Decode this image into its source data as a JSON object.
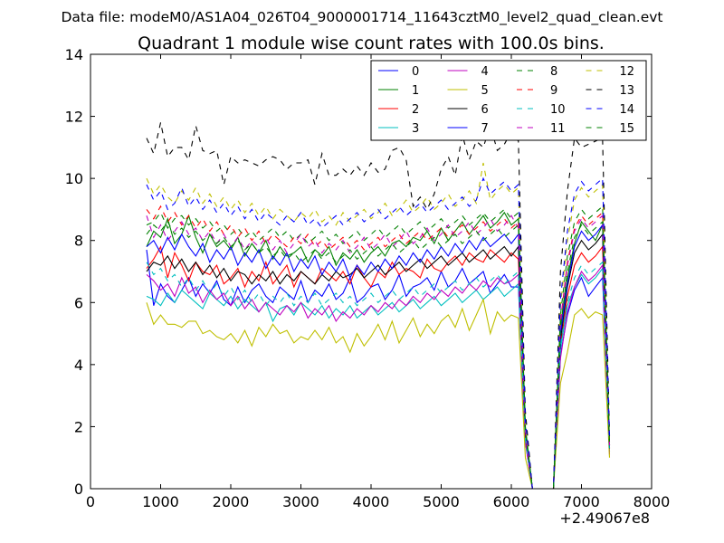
{
  "chart_data": {
    "type": "line",
    "suptitle": "Data file: modeM0/AS1A04_026T04_9000001714_11643cztM0_level2_quad_clean.evt",
    "title": "Quadrant 1 module wise count rates with 100.0s bins.",
    "xlabel": "",
    "ylabel": "",
    "x_offset_label": "+2.49067e8",
    "xlim": [
      0,
      8000
    ],
    "ylim": [
      0,
      14
    ],
    "x_ticks": [
      0,
      1000,
      2000,
      3000,
      4000,
      5000,
      6000,
      7000,
      8000
    ],
    "y_ticks": [
      0,
      2,
      4,
      6,
      8,
      10,
      12,
      14
    ],
    "legend": {
      "position": "top-right",
      "columns": 4
    },
    "x": [
      800,
      900,
      1000,
      1100,
      1200,
      1300,
      1400,
      1500,
      1600,
      1700,
      1800,
      1900,
      2000,
      2100,
      2200,
      2300,
      2400,
      2500,
      2600,
      2700,
      2800,
      2900,
      3000,
      3100,
      3200,
      3300,
      3400,
      3500,
      3600,
      3700,
      3800,
      3900,
      4000,
      4100,
      4200,
      4300,
      4400,
      4500,
      4600,
      4700,
      4800,
      4900,
      5000,
      5100,
      5200,
      5300,
      5400,
      5500,
      5600,
      5700,
      5800,
      5900,
      6000,
      6100,
      6200,
      6300,
      6400,
      6500,
      6600,
      6700,
      6800,
      6900,
      7000,
      7100,
      7200,
      7300,
      7400
    ],
    "series": [
      {
        "name": "0",
        "color": "#0000ff",
        "dash": "solid",
        "values": [
          7.7,
          5.9,
          6.6,
          6.2,
          6.0,
          6.4,
          6.8,
          6.2,
          6.6,
          6.3,
          6.7,
          6.1,
          5.9,
          6.5,
          6.0,
          6.4,
          6.6,
          6.2,
          6.0,
          6.5,
          6.3,
          6.1,
          6.7,
          6.0,
          6.4,
          6.2,
          6.6,
          6.1,
          6.3,
          6.8,
          6.0,
          6.2,
          6.5,
          6.6,
          6.1,
          6.4,
          6.9,
          6.2,
          6.5,
          6.6,
          6.8,
          6.4,
          7.0,
          6.5,
          6.7,
          7.1,
          6.6,
          6.8,
          7.0,
          6.3,
          6.6,
          6.9,
          6.5,
          6.5,
          1.5,
          0,
          0,
          0,
          0,
          4.3,
          5.6,
          6.4,
          6.8,
          6.2,
          6.5,
          6.8,
          1.2
        ]
      },
      {
        "name": "1",
        "color": "#008000",
        "dash": "solid",
        "values": [
          7.8,
          8.3,
          8.1,
          8.7,
          7.9,
          8.2,
          8.8,
          8.1,
          7.6,
          8.2,
          7.8,
          8.0,
          7.7,
          8.1,
          7.5,
          7.9,
          7.6,
          8.0,
          7.4,
          7.8,
          7.5,
          7.6,
          7.8,
          7.3,
          7.7,
          7.5,
          7.8,
          7.2,
          7.6,
          7.4,
          7.7,
          7.3,
          7.6,
          7.8,
          7.5,
          7.9,
          8.0,
          7.8,
          8.1,
          8.0,
          8.3,
          7.9,
          8.4,
          8.0,
          8.3,
          8.6,
          8.2,
          8.5,
          8.8,
          8.4,
          8.6,
          8.9,
          8.5,
          8.7,
          1.9,
          0,
          0,
          0,
          0,
          5.2,
          6.8,
          7.9,
          8.6,
          8.3,
          8.0,
          8.5,
          1.4
        ]
      },
      {
        "name": "2",
        "color": "#ff0000",
        "dash": "solid",
        "values": [
          7.1,
          7.4,
          7.8,
          6.8,
          7.6,
          7.2,
          6.7,
          7.3,
          7.0,
          6.9,
          7.2,
          6.6,
          6.8,
          7.1,
          6.5,
          7.0,
          6.7,
          7.3,
          6.6,
          6.9,
          7.2,
          6.5,
          7.0,
          6.8,
          6.6,
          7.1,
          6.9,
          6.7,
          7.0,
          6.6,
          7.2,
          6.8,
          6.5,
          7.0,
          6.8,
          7.3,
          6.9,
          7.1,
          7.0,
          6.8,
          7.4,
          7.1,
          7.0,
          7.3,
          7.5,
          7.2,
          7.6,
          7.4,
          7.3,
          7.7,
          7.5,
          7.3,
          7.6,
          7.4,
          1.7,
          0,
          0,
          0,
          0,
          4.6,
          6.2,
          7.2,
          7.6,
          7.3,
          7.5,
          7.8,
          1.3
        ]
      },
      {
        "name": "3",
        "color": "#00bfbf",
        "dash": "solid",
        "values": [
          6.2,
          6.1,
          5.9,
          6.3,
          6.0,
          6.4,
          6.2,
          6.0,
          5.8,
          6.3,
          6.1,
          5.9,
          6.2,
          5.8,
          6.1,
          5.9,
          5.7,
          6.0,
          5.4,
          5.8,
          5.9,
          5.6,
          6.0,
          5.8,
          5.6,
          5.9,
          5.5,
          5.8,
          5.6,
          5.9,
          5.5,
          5.7,
          5.9,
          5.6,
          5.8,
          6.0,
          5.7,
          5.9,
          6.1,
          5.8,
          6.0,
          6.2,
          5.9,
          6.1,
          6.3,
          6.0,
          6.2,
          6.4,
          6.1,
          6.3,
          6.5,
          6.2,
          6.4,
          6.6,
          1.6,
          0,
          0,
          0,
          0,
          4.5,
          5.9,
          6.5,
          6.9,
          6.6,
          6.8,
          7.1,
          1.2
        ]
      },
      {
        "name": "4",
        "color": "#bf00bf",
        "dash": "solid",
        "values": [
          6.9,
          6.7,
          6.4,
          6.6,
          6.2,
          6.8,
          6.3,
          6.5,
          6.0,
          6.4,
          6.1,
          6.3,
          5.9,
          6.2,
          5.8,
          6.1,
          5.7,
          6.0,
          5.8,
          5.6,
          5.9,
          5.7,
          6.0,
          5.5,
          5.8,
          5.6,
          5.9,
          5.4,
          5.7,
          5.5,
          5.8,
          5.6,
          5.9,
          5.7,
          6.0,
          5.8,
          6.1,
          5.9,
          6.2,
          6.0,
          6.3,
          6.1,
          6.4,
          6.2,
          6.5,
          6.3,
          6.6,
          6.4,
          6.7,
          6.5,
          6.8,
          6.6,
          6.7,
          6.9,
          1.5,
          0,
          0,
          0,
          0,
          4.2,
          5.7,
          6.5,
          7.0,
          6.7,
          6.9,
          7.2,
          1.1
        ]
      },
      {
        "name": "5",
        "color": "#bfbf00",
        "dash": "solid",
        "values": [
          6.0,
          5.3,
          5.6,
          5.3,
          5.3,
          5.2,
          5.4,
          5.4,
          5.0,
          5.1,
          4.9,
          4.8,
          5.0,
          4.7,
          5.1,
          4.6,
          5.2,
          4.9,
          5.3,
          5.0,
          5.1,
          4.7,
          4.9,
          4.8,
          5.1,
          4.8,
          5.2,
          4.7,
          4.9,
          4.4,
          5.0,
          4.6,
          4.9,
          5.3,
          4.8,
          5.4,
          4.7,
          5.1,
          5.5,
          4.9,
          5.3,
          5.0,
          5.4,
          5.6,
          5.2,
          5.8,
          5.1,
          5.6,
          6.1,
          5.0,
          5.7,
          5.4,
          5.6,
          5.5,
          1.0,
          0,
          0,
          0,
          0,
          3.4,
          4.4,
          5.6,
          5.8,
          5.5,
          5.7,
          5.6,
          1.0
        ]
      },
      {
        "name": "6",
        "color": "#000000",
        "dash": "solid",
        "values": [
          7.0,
          7.3,
          7.2,
          7.5,
          7.1,
          7.4,
          7.0,
          7.3,
          6.9,
          7.2,
          6.8,
          7.1,
          6.7,
          7.0,
          6.9,
          6.6,
          6.9,
          6.7,
          7.0,
          6.6,
          6.9,
          6.7,
          7.0,
          6.8,
          6.6,
          6.9,
          6.7,
          7.0,
          6.8,
          6.9,
          7.1,
          6.8,
          7.0,
          7.2,
          6.9,
          7.1,
          7.3,
          7.0,
          7.2,
          7.4,
          7.1,
          7.3,
          7.5,
          7.2,
          7.4,
          7.6,
          7.3,
          7.5,
          7.7,
          7.4,
          7.6,
          7.8,
          7.5,
          7.8,
          1.8,
          0,
          0,
          0,
          0,
          4.8,
          6.5,
          7.6,
          8.0,
          7.7,
          7.9,
          8.2,
          1.3
        ]
      },
      {
        "name": "7",
        "color": "#0000ff",
        "dash": "solid",
        "values": [
          7.8,
          8.0,
          7.6,
          8.1,
          7.7,
          8.2,
          7.8,
          7.5,
          7.9,
          7.3,
          7.7,
          7.4,
          7.8,
          7.2,
          7.6,
          7.3,
          7.7,
          7.1,
          7.5,
          7.2,
          7.6,
          7.0,
          7.4,
          7.1,
          7.5,
          6.9,
          7.3,
          7.0,
          7.4,
          6.8,
          7.2,
          6.9,
          7.3,
          7.0,
          7.4,
          7.1,
          7.5,
          7.2,
          7.6,
          7.3,
          7.7,
          7.4,
          7.8,
          7.5,
          7.9,
          7.6,
          8.0,
          7.7,
          8.1,
          7.8,
          8.0,
          8.2,
          7.9,
          8.2,
          1.9,
          0,
          0,
          0,
          0,
          5.0,
          6.6,
          7.8,
          8.3,
          8.0,
          8.2,
          8.5,
          1.4
        ]
      },
      {
        "name": "8",
        "color": "#008000",
        "dash": "dashed",
        "values": [
          8.5,
          8.6,
          8.9,
          8.4,
          8.7,
          8.8,
          8.5,
          8.7,
          8.4,
          8.6,
          8.3,
          8.5,
          8.2,
          8.4,
          8.1,
          8.3,
          8.0,
          8.2,
          8.4,
          8.1,
          8.3,
          8.0,
          8.2,
          7.9,
          8.1,
          8.3,
          8.0,
          8.2,
          7.9,
          8.1,
          8.3,
          8.0,
          8.2,
          8.4,
          8.1,
          8.3,
          8.5,
          8.2,
          8.4,
          8.6,
          8.3,
          8.5,
          8.7,
          8.4,
          8.6,
          8.8,
          8.5,
          8.7,
          8.9,
          8.6,
          8.8,
          9.0,
          8.7,
          8.9,
          2.0,
          0,
          0,
          0,
          0,
          5.6,
          7.5,
          8.6,
          9.0,
          8.7,
          8.9,
          9.1,
          1.5
        ]
      },
      {
        "name": "9",
        "color": "#ff0000",
        "dash": "dashed",
        "values": [
          9.0,
          8.7,
          9.1,
          8.6,
          8.9,
          8.5,
          8.8,
          8.4,
          8.7,
          8.3,
          8.6,
          8.2,
          8.5,
          8.1,
          8.4,
          8.0,
          8.3,
          7.9,
          8.2,
          8.0,
          7.8,
          8.1,
          7.9,
          8.2,
          7.8,
          8.0,
          7.7,
          7.9,
          8.1,
          7.8,
          8.0,
          7.7,
          7.9,
          8.1,
          7.8,
          8.0,
          8.2,
          7.9,
          8.1,
          8.3,
          8.0,
          8.2,
          8.4,
          8.1,
          8.3,
          8.5,
          8.2,
          8.4,
          8.6,
          8.3,
          8.5,
          8.7,
          8.4,
          8.6,
          1.9,
          0,
          0,
          0,
          0,
          5.4,
          7.3,
          8.4,
          8.8,
          8.5,
          8.7,
          8.9,
          1.4
        ]
      },
      {
        "name": "10",
        "color": "#00bfbf",
        "dash": "dashed",
        "values": [
          7.3,
          6.9,
          7.1,
          6.7,
          6.9,
          6.5,
          6.8,
          6.4,
          6.7,
          6.3,
          6.6,
          6.2,
          6.5,
          6.1,
          6.4,
          6.0,
          6.3,
          5.9,
          6.2,
          6.0,
          6.3,
          5.9,
          6.2,
          6.0,
          6.3,
          5.9,
          6.1,
          6.3,
          6.0,
          6.2,
          5.9,
          6.1,
          6.3,
          6.0,
          6.2,
          6.4,
          6.1,
          6.3,
          6.5,
          6.2,
          6.4,
          6.6,
          6.3,
          6.5,
          6.7,
          6.4,
          6.6,
          6.8,
          6.5,
          6.7,
          6.9,
          6.6,
          6.8,
          7.0,
          1.6,
          0,
          0,
          0,
          0,
          4.6,
          6.0,
          6.8,
          7.2,
          6.9,
          7.1,
          7.3,
          1.2
        ]
      },
      {
        "name": "11",
        "color": "#bf00bf",
        "dash": "dashed",
        "values": [
          8.8,
          8.1,
          8.5,
          8.0,
          8.3,
          8.6,
          8.2,
          8.4,
          8.0,
          8.3,
          7.9,
          8.2,
          7.8,
          8.1,
          7.7,
          8.0,
          7.8,
          8.1,
          7.7,
          8.0,
          7.6,
          7.9,
          8.2,
          7.8,
          8.0,
          7.6,
          7.9,
          7.7,
          8.0,
          7.6,
          7.8,
          8.1,
          7.7,
          7.9,
          8.2,
          7.8,
          8.0,
          8.3,
          7.9,
          8.1,
          8.4,
          8.0,
          8.2,
          8.5,
          8.1,
          8.3,
          8.6,
          8.2,
          8.4,
          8.7,
          8.3,
          8.5,
          8.8,
          8.4,
          1.9,
          0,
          0,
          0,
          0,
          5.3,
          7.2,
          8.3,
          8.7,
          8.4,
          8.6,
          8.8,
          1.4
        ]
      },
      {
        "name": "12",
        "color": "#bfbf00",
        "dash": "dashed",
        "values": [
          10.0,
          9.5,
          9.8,
          9.4,
          9.2,
          9.6,
          9.3,
          9.7,
          9.2,
          9.5,
          9.1,
          9.4,
          9.0,
          9.3,
          8.9,
          9.2,
          8.8,
          9.1,
          8.7,
          9.0,
          8.8,
          8.6,
          8.9,
          8.7,
          9.0,
          8.6,
          8.8,
          8.5,
          8.9,
          8.6,
          8.8,
          9.0,
          8.7,
          8.9,
          9.2,
          8.8,
          9.0,
          9.3,
          8.9,
          9.1,
          9.4,
          9.0,
          9.2,
          9.5,
          9.1,
          9.3,
          9.6,
          9.2,
          10.5,
          9.3,
          9.6,
          9.8,
          9.5,
          9.7,
          2.1,
          0,
          0,
          0,
          0,
          5.9,
          8.0,
          9.3,
          9.7,
          9.4,
          9.6,
          9.8,
          1.5
        ]
      },
      {
        "name": "13",
        "color": "#000000",
        "dash": "dashed",
        "values": [
          11.3,
          10.8,
          11.8,
          10.7,
          11.0,
          11.0,
          10.6,
          11.7,
          10.9,
          10.8,
          10.9,
          9.8,
          10.7,
          10.5,
          10.6,
          10.5,
          10.4,
          10.6,
          10.7,
          10.6,
          10.3,
          10.5,
          10.5,
          10.6,
          9.8,
          10.8,
          10.1,
          10.1,
          10.3,
          10.1,
          10.4,
          10.1,
          10.5,
          10.2,
          10.3,
          10.9,
          11.0,
          10.6,
          9.1,
          9.4,
          9.0,
          9.5,
          10.3,
          10.7,
          10.1,
          11.4,
          10.6,
          11.2,
          11.0,
          11.7,
          10.9,
          11.1,
          11.5,
          11.2,
          2.5,
          0,
          0,
          0,
          0,
          7.0,
          9.6,
          11.3,
          11.0,
          11.1,
          11.2,
          11.3,
          1.7
        ]
      },
      {
        "name": "14",
        "color": "#0000ff",
        "dash": "dashed",
        "values": [
          9.8,
          9.3,
          9.6,
          9.0,
          9.2,
          9.7,
          9.1,
          9.4,
          9.0,
          9.3,
          8.9,
          9.2,
          8.8,
          9.1,
          8.7,
          9.0,
          8.6,
          8.9,
          8.7,
          8.5,
          8.8,
          8.6,
          8.9,
          8.5,
          8.7,
          8.4,
          8.6,
          8.8,
          8.5,
          8.7,
          8.9,
          8.6,
          8.8,
          9.0,
          8.7,
          8.9,
          9.1,
          8.8,
          9.0,
          9.2,
          8.9,
          9.1,
          9.3,
          9.0,
          9.2,
          9.4,
          9.1,
          9.3,
          10.0,
          9.5,
          9.7,
          9.9,
          9.6,
          9.8,
          2.2,
          0,
          0,
          0,
          0,
          6.1,
          8.3,
          9.5,
          9.9,
          9.6,
          9.8,
          10.0,
          1.6
        ]
      },
      {
        "name": "15",
        "color": "#008000",
        "dash": "dashed",
        "values": [
          8.2,
          8.5,
          8.3,
          8.6,
          8.2,
          8.4,
          8.1,
          8.3,
          8.0,
          8.2,
          7.9,
          8.1,
          7.8,
          8.0,
          7.7,
          7.9,
          7.6,
          7.8,
          7.5,
          7.7,
          7.4,
          7.6,
          7.3,
          7.5,
          7.7,
          7.4,
          7.6,
          7.3,
          7.5,
          7.7,
          7.4,
          7.6,
          7.8,
          7.5,
          7.7,
          7.9,
          7.6,
          7.8,
          8.0,
          7.7,
          7.9,
          8.1,
          7.8,
          8.0,
          8.2,
          7.9,
          8.1,
          8.3,
          8.0,
          8.2,
          8.4,
          8.1,
          8.3,
          8.5,
          1.9,
          0,
          0,
          0,
          0,
          5.2,
          7.0,
          8.1,
          8.5,
          8.2,
          8.4,
          8.6,
          1.4
        ]
      }
    ]
  }
}
